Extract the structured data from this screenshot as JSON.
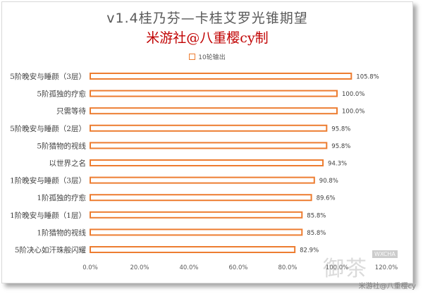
{
  "chart_data": {
    "type": "bar",
    "orientation": "horizontal",
    "title": "v1.4桂乃芬—卡桂艾罗光锥期望",
    "subtitle": "米游社@八重樱cy制",
    "series": [
      {
        "name": "10轮输出",
        "color": "#ed7d31",
        "values": [
          105.8,
          100.0,
          100.0,
          95.8,
          95.8,
          94.3,
          90.8,
          89.6,
          85.8,
          85.8,
          82.9
        ]
      }
    ],
    "categories": [
      "5阶晚安与睡颜（3层）",
      "5阶孤独的疗愈",
      "只需等待",
      "5阶晚安与睡颜（2层）",
      "5阶猎物的视线",
      "以世界之名",
      "1阶晚安与睡颜（3层）",
      "1阶孤独的疗愈",
      "1阶晚安与睡颜（1层）",
      "1阶猎物的视线",
      "5阶决心如汗珠般闪耀"
    ],
    "data_labels": [
      "105.8%",
      "100.0%",
      "100.0%",
      "95.8%",
      "95.8%",
      "94.3%",
      "90.8%",
      "89.6%",
      "85.8%",
      "85.8%",
      "82.9%"
    ],
    "xlim": [
      0,
      120
    ],
    "xticks": [
      "0.0%",
      "20.0%",
      "40.0%",
      "60.0%",
      "80.0%",
      "100.0%",
      "120.0%"
    ],
    "grid": false,
    "legend_position": "top"
  },
  "watermark": {
    "glyphs": "御茶",
    "tag": "WXCHA"
  },
  "credit": "米游社@八重樱cy"
}
